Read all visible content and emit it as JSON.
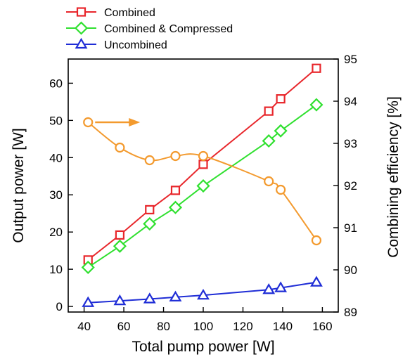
{
  "chart_data": {
    "type": "line",
    "x": [
      42,
      58,
      73,
      86,
      100,
      133,
      139,
      157
    ],
    "xlabel": "Total pump power  [W]",
    "ylabel": "Output power  [W]",
    "y2label": "Combining efficiency  [%]",
    "xlim": [
      32,
      168
    ],
    "ylim": [
      -1.5,
      66.5
    ],
    "y2lim": [
      89,
      95
    ],
    "xticks": [
      40,
      60,
      80,
      100,
      120,
      140,
      160
    ],
    "yticks": [
      0,
      10,
      20,
      30,
      40,
      50,
      60
    ],
    "y2ticks": [
      89,
      90,
      91,
      92,
      93,
      94,
      95
    ],
    "grid": false,
    "legend_position": "top-left, above plot",
    "series": [
      {
        "name": "Combined",
        "axis": "left",
        "marker": "square",
        "color": "#e8262b",
        "values": [
          12.5,
          19.2,
          26.0,
          31.2,
          38.2,
          52.5,
          55.8,
          64.0
        ]
      },
      {
        "name": "Combined & Compressed",
        "axis": "left",
        "marker": "diamond",
        "color": "#2fe02f",
        "values": [
          10.5,
          16.2,
          22.2,
          26.6,
          32.4,
          44.5,
          47.2,
          54.2
        ]
      },
      {
        "name": "Uncombined",
        "axis": "left",
        "marker": "triangle",
        "color": "#1f2dd6",
        "values": [
          1.0,
          1.5,
          2.0,
          2.5,
          3.0,
          4.5,
          5.0,
          6.5
        ]
      },
      {
        "name": "",
        "axis": "right",
        "marker": "circle",
        "color": "#f39a2e",
        "values": [
          93.5,
          92.9,
          92.6,
          92.7,
          92.7,
          92.1,
          91.9,
          90.7
        ]
      }
    ],
    "annotations": [
      {
        "type": "arrow",
        "color": "#f39a2e",
        "points_to": "right axis (Combining efficiency)"
      }
    ]
  }
}
